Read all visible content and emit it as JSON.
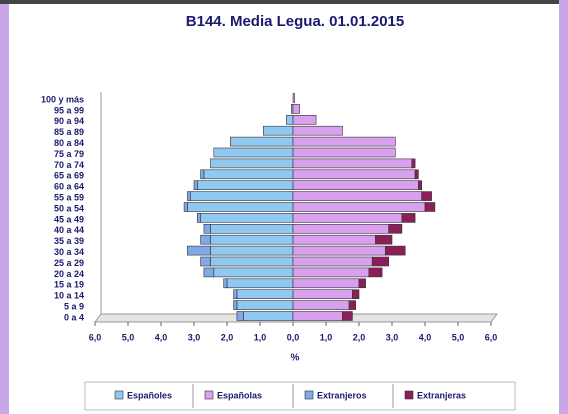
{
  "chart_data": {
    "type": "pyramid",
    "title": "B144. Media Legua. 01.01.2015",
    "x_label": "%",
    "categories": [
      "0 a 4",
      "5 a 9",
      "10 a 14",
      "15 a 19",
      "20 a 24",
      "25 a 29",
      "30 a 34",
      "35 a 39",
      "40 a 44",
      "45 a 49",
      "50 a 54",
      "55 a 59",
      "60 a 64",
      "65 a 69",
      "70 a 74",
      "75 a 79",
      "80 a 84",
      "85 a 89",
      "90 a 94",
      "95 a 99",
      "100 y más"
    ],
    "series": [
      {
        "name": "Españoles",
        "color": "#8fc8f0",
        "values": [
          -1.5,
          -1.7,
          -1.7,
          -2.0,
          -2.4,
          -2.5,
          -2.5,
          -2.5,
          -2.5,
          -2.8,
          -3.2,
          -3.1,
          -2.9,
          -2.7,
          -2.5,
          -2.4,
          -1.9,
          -0.9,
          -0.2,
          -0.05,
          0
        ]
      },
      {
        "name": "Españolas",
        "color": "#d9a0f0",
        "values": [
          1.5,
          1.7,
          1.8,
          2.0,
          2.3,
          2.4,
          2.8,
          2.5,
          2.9,
          3.3,
          4.0,
          3.9,
          3.8,
          3.7,
          3.6,
          3.1,
          3.1,
          1.5,
          0.7,
          0.2,
          0.05
        ]
      },
      {
        "name": "Extranjeros",
        "color": "#7fa8e8",
        "values": [
          -0.2,
          -0.1,
          -0.1,
          -0.1,
          -0.3,
          -0.3,
          -0.7,
          -0.3,
          -0.2,
          -0.1,
          -0.1,
          -0.1,
          -0.1,
          -0.1,
          0,
          0,
          0,
          0,
          0,
          0,
          0
        ]
      },
      {
        "name": "Extranjeras",
        "color": "#8a1f5a",
        "values": [
          0.3,
          0.2,
          0.2,
          0.2,
          0.4,
          0.5,
          0.6,
          0.5,
          0.4,
          0.4,
          0.3,
          0.3,
          0.1,
          0.1,
          0.1,
          0,
          0,
          0,
          0,
          0,
          0
        ]
      }
    ],
    "xlim": [
      -6,
      6
    ],
    "xticks": [
      {
        "value": -6,
        "label": "6,0"
      },
      {
        "value": -5,
        "label": "5,0"
      },
      {
        "value": -4,
        "label": "4,0"
      },
      {
        "value": -3,
        "label": "3,0"
      },
      {
        "value": -2,
        "label": "2,0"
      },
      {
        "value": -1,
        "label": "1,0"
      },
      {
        "value": 0,
        "label": "0,0"
      },
      {
        "value": 1,
        "label": "1,0"
      },
      {
        "value": 2,
        "label": "2,0"
      },
      {
        "value": 3,
        "label": "3,0"
      },
      {
        "value": 4,
        "label": "4,0"
      },
      {
        "value": 5,
        "label": "5,0"
      },
      {
        "value": 6,
        "label": "6,0"
      }
    ]
  }
}
